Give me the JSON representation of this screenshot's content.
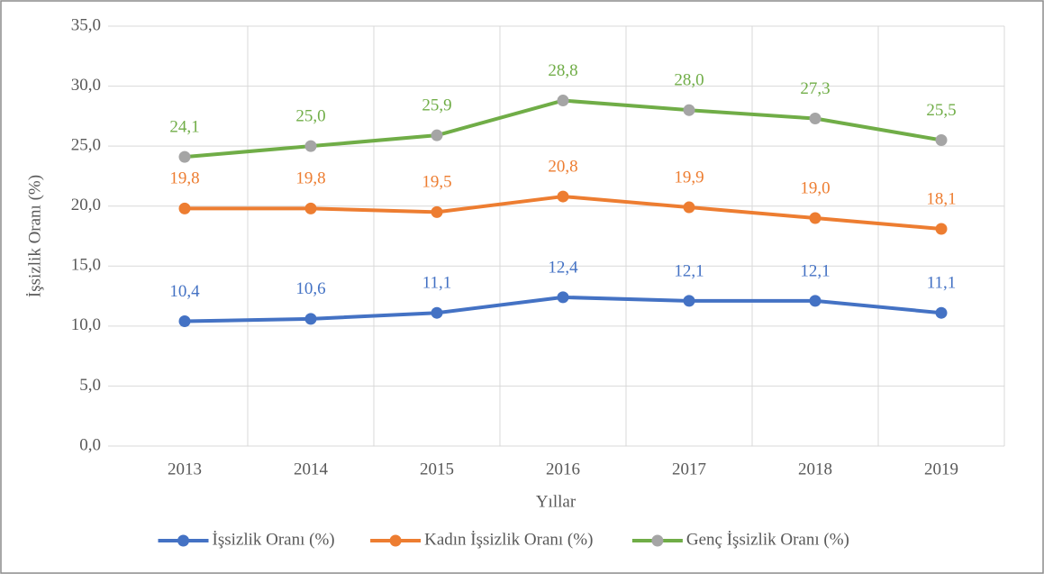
{
  "chart_data": {
    "type": "line",
    "x_label": "Yıllar",
    "y_label": "İşsizlik Oranı (%)",
    "categories": [
      "2013",
      "2014",
      "2015",
      "2016",
      "2017",
      "2018",
      "2019"
    ],
    "series": [
      {
        "name": "İşsizlik Oranı (%)",
        "color": "#4472c4",
        "marker_color": "#4472c4",
        "values": [
          10.4,
          10.6,
          11.1,
          12.4,
          12.1,
          12.1,
          11.1
        ],
        "value_labels": [
          "10,4",
          "10,6",
          "11,1",
          "12,4",
          "12,1",
          "12,1",
          "11,1"
        ]
      },
      {
        "name": "Kadın İşsizlik Oranı (%)",
        "color": "#ed7d31",
        "marker_color": "#ed7d31",
        "values": [
          19.8,
          19.8,
          19.5,
          20.8,
          19.9,
          19.0,
          18.1
        ],
        "value_labels": [
          "19,8",
          "19,8",
          "19,5",
          "20,8",
          "19,9",
          "19,0",
          "18,1"
        ]
      },
      {
        "name": "Genç İşsizlik Oranı (%)",
        "color": "#70ad47",
        "marker_color": "#a5a5a5",
        "values": [
          24.1,
          25.0,
          25.9,
          28.8,
          28.0,
          27.3,
          25.5
        ],
        "value_labels": [
          "24,1",
          "25,0",
          "25,9",
          "28,8",
          "28,0",
          "27,3",
          "25,5"
        ]
      }
    ],
    "ylim": [
      0,
      35
    ],
    "yticks": [
      {
        "value": 0,
        "label": "0,0"
      },
      {
        "value": 5,
        "label": "5,0"
      },
      {
        "value": 10,
        "label": "10,0"
      },
      {
        "value": 15,
        "label": "15,0"
      },
      {
        "value": 20,
        "label": "20,0"
      },
      {
        "value": 25,
        "label": "25,0"
      },
      {
        "value": 30,
        "label": "30,0"
      },
      {
        "value": 35,
        "label": "35,0"
      }
    ],
    "grid": true,
    "legend": "bottom"
  }
}
